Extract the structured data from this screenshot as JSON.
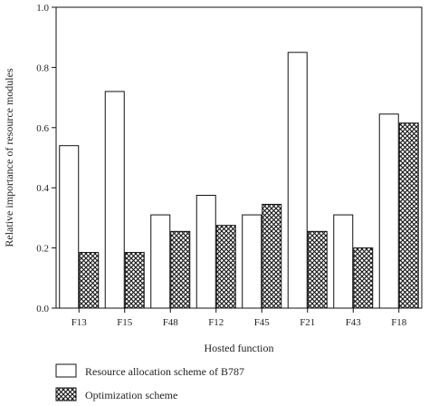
{
  "chart_data": {
    "type": "bar",
    "xlabel": "Hosted function",
    "ylabel": "Relative importance of resource modules",
    "ylim": [
      0,
      1.0
    ],
    "yticks": [
      "0.0",
      "0.2",
      "0.4",
      "0.6",
      "0.8",
      "1.0"
    ],
    "categories": [
      "F13",
      "F15",
      "F48",
      "F12",
      "F45",
      "F21",
      "F43",
      "F18"
    ],
    "series": [
      {
        "name": "Resource allocation scheme of B787",
        "pattern": "plain",
        "values": [
          0.54,
          0.72,
          0.31,
          0.375,
          0.31,
          0.85,
          0.31,
          0.645
        ]
      },
      {
        "name": "Optimization scheme",
        "pattern": "crosshatch",
        "values": [
          0.185,
          0.185,
          0.255,
          0.275,
          0.345,
          0.255,
          0.2,
          0.615
        ]
      }
    ],
    "grid": false,
    "legend_position": "bottom"
  }
}
